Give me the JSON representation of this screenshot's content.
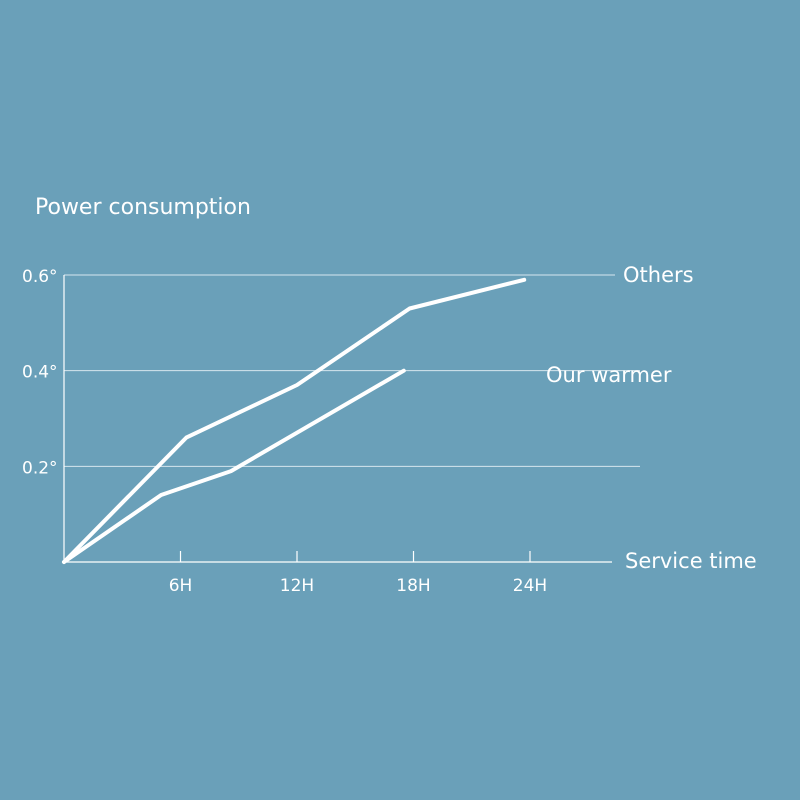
{
  "chart_data": {
    "type": "line",
    "ylabel": "Power consumption",
    "xlabel": "Service time",
    "x_ticks": [
      "6H",
      "12H",
      "18H",
      "24H"
    ],
    "y_ticks": [
      "0.2°",
      "0.4°",
      "0.6°"
    ],
    "x_tick_values": [
      6,
      12,
      18,
      24
    ],
    "y_tick_values": [
      0.2,
      0.4,
      0.6
    ],
    "xlim": [
      0,
      24
    ],
    "ylim": [
      0,
      0.6
    ],
    "grid": "horizontal",
    "series": [
      {
        "name": "Others",
        "x": [
          0,
          6.3,
          12,
          17.8,
          23.7
        ],
        "y": [
          0,
          0.26,
          0.37,
          0.53,
          0.59
        ]
      },
      {
        "name": "Our warmer",
        "x": [
          0,
          5,
          8.6,
          17.5
        ],
        "y": [
          0,
          0.14,
          0.19,
          0.4
        ]
      }
    ],
    "colors": {
      "background": "#6aa0b9",
      "foreground": "#ffffff"
    }
  }
}
